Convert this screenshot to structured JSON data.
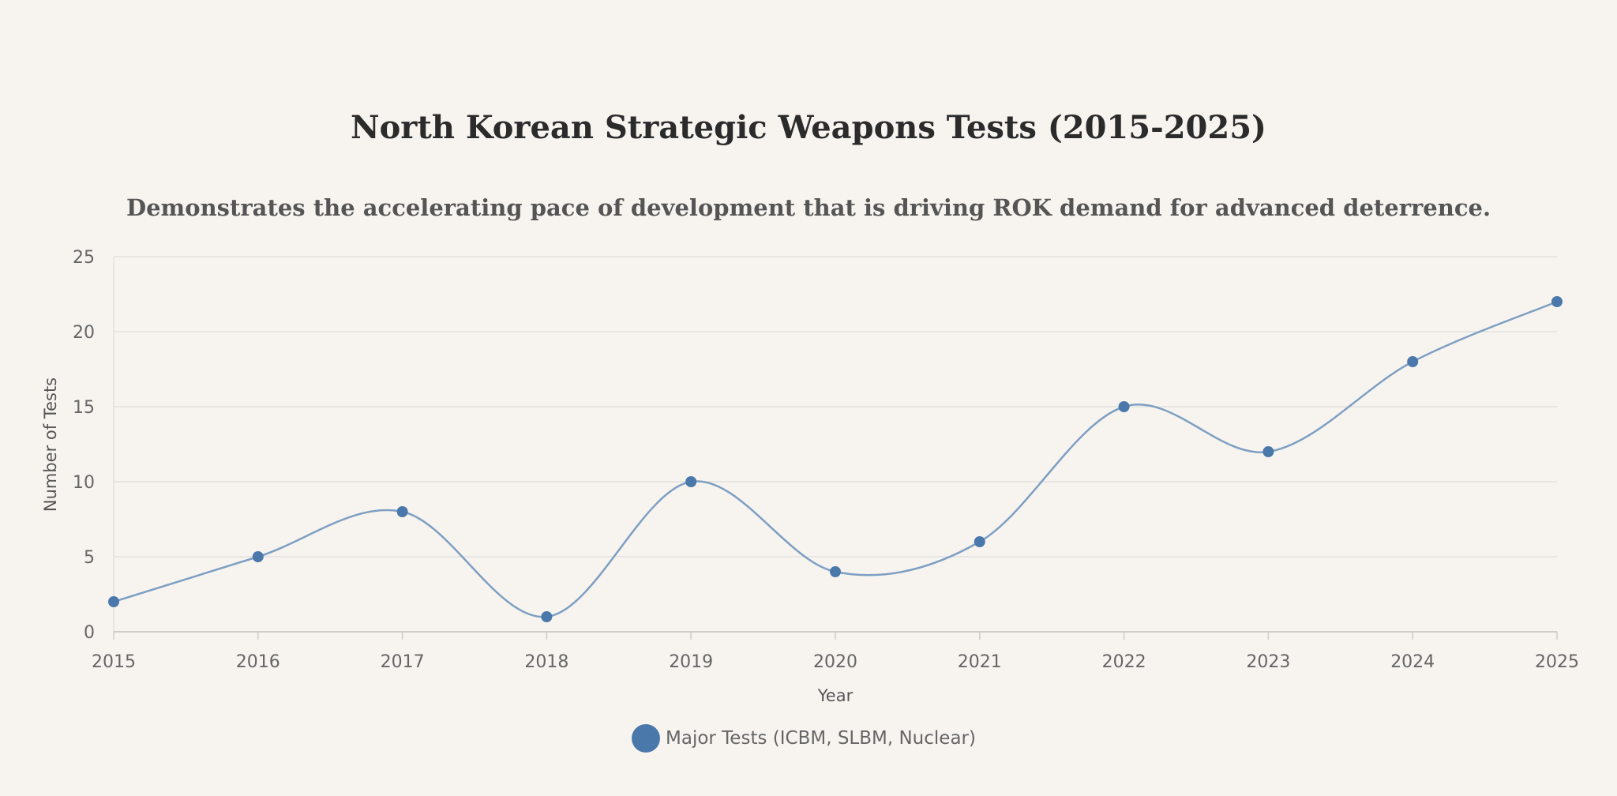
{
  "colors": {
    "background": "#f7f4f0",
    "series": "#4a78aa",
    "line": "#7e9fc2",
    "grid": "#e4e1dd",
    "axis": "#cfcbc6"
  },
  "chart_data": {
    "type": "line",
    "title": "North Korean Strategic Weapons Tests (2015-2025)",
    "subtitle": "Demonstrates the accelerating pace of development that is driving ROK demand for advanced deterrence.",
    "xlabel": "Year",
    "ylabel": "Number of Tests",
    "x": [
      "2015",
      "2016",
      "2017",
      "2018",
      "2019",
      "2020",
      "2021",
      "2022",
      "2023",
      "2024",
      "2025"
    ],
    "series": [
      {
        "name": "Major Tests (ICBM, SLBM, Nuclear)",
        "values": [
          2,
          5,
          8,
          1,
          10,
          4,
          6,
          15,
          12,
          18,
          22
        ]
      }
    ],
    "ylim": [
      0,
      25
    ],
    "yticks": [
      0,
      5,
      10,
      15,
      20,
      25
    ],
    "grid": true,
    "legend_position": "bottom-center"
  }
}
